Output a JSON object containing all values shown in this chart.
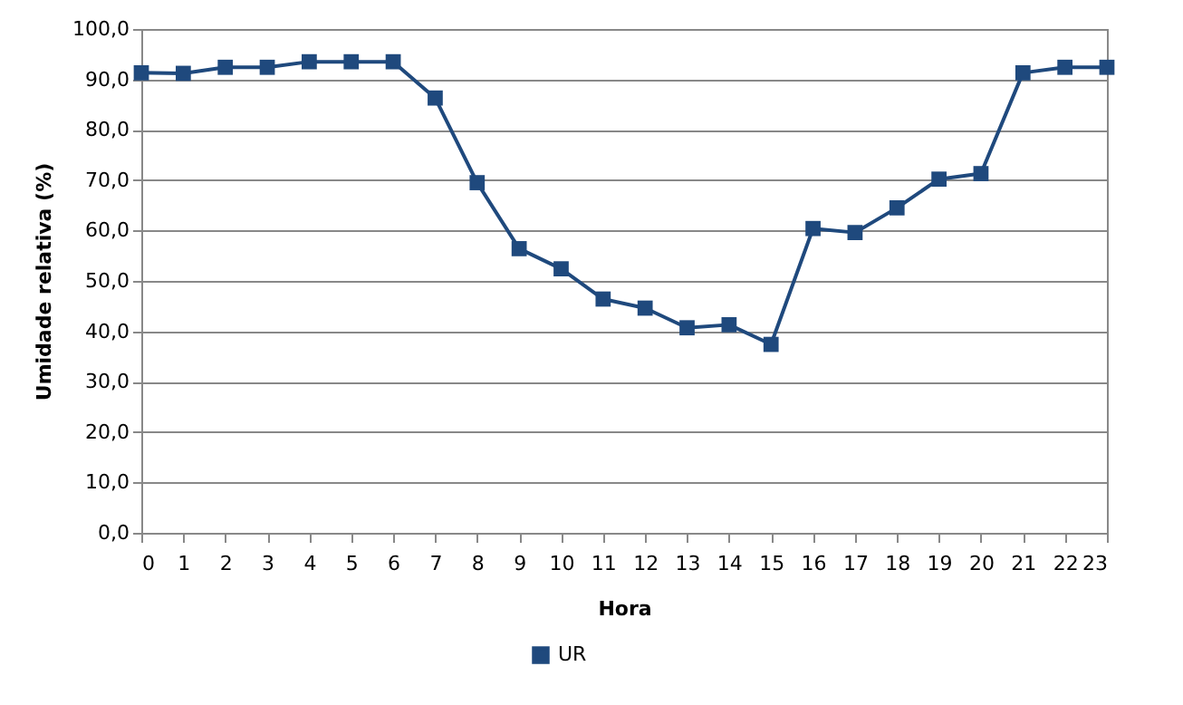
{
  "chart_data": {
    "type": "line",
    "xlabel": "Hora",
    "ylabel": "Umidade relativa (%)",
    "x": [
      0,
      1,
      2,
      3,
      4,
      5,
      6,
      7,
      8,
      9,
      10,
      11,
      12,
      13,
      14,
      15,
      16,
      17,
      18,
      19,
      20,
      21,
      22,
      23
    ],
    "series": [
      {
        "name": "UR",
        "color": "#1f497d",
        "values": [
          91.3,
          91.2,
          92.4,
          92.4,
          93.5,
          93.5,
          93.5,
          86.3,
          69.5,
          56.4,
          52.4,
          46.4,
          44.6,
          40.7,
          41.3,
          37.4,
          60.4,
          59.6,
          64.5,
          70.2,
          71.3,
          91.3,
          92.4,
          92.4
        ]
      }
    ],
    "xlim": [
      0,
      23
    ],
    "xticks": [
      0,
      1,
      2,
      3,
      4,
      5,
      6,
      7,
      8,
      9,
      10,
      11,
      12,
      13,
      14,
      15,
      16,
      17,
      18,
      19,
      20,
      21,
      22,
      23
    ],
    "ylim": [
      0,
      100
    ],
    "yticks": [
      {
        "value": 0,
        "label": "0,0"
      },
      {
        "value": 10,
        "label": "10,0"
      },
      {
        "value": 20,
        "label": "20,0"
      },
      {
        "value": 30,
        "label": "30,0"
      },
      {
        "value": 40,
        "label": "40,0"
      },
      {
        "value": 50,
        "label": "50,0"
      },
      {
        "value": 60,
        "label": "60,0"
      },
      {
        "value": 70,
        "label": "70,0"
      },
      {
        "value": 80,
        "label": "80,0"
      },
      {
        "value": 90,
        "label": "90,0"
      },
      {
        "value": 100,
        "label": "100,0"
      }
    ],
    "grid": "y",
    "legend": "bottom",
    "marker": "square",
    "line_style": "solid"
  }
}
